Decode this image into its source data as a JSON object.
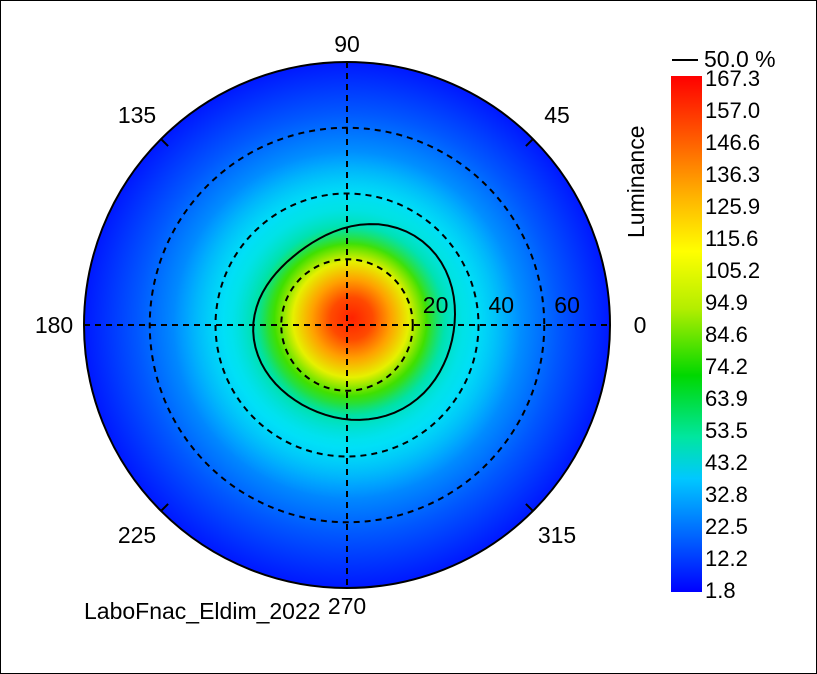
{
  "chart_data": {
    "type": "heatmap",
    "projection": "polar",
    "colorbar_title": "Luminance",
    "contour_label": "50.0 %",
    "colorbar_ticks": [
      "167.3",
      "157.0",
      "146.6",
      "136.3",
      "125.9",
      "115.6",
      "105.2",
      "94.9",
      "84.6",
      "74.2",
      "63.9",
      "53.5",
      "43.2",
      "32.8",
      "22.5",
      "12.2",
      "1.8"
    ],
    "value_range": [
      1.8,
      167.3
    ],
    "angle_labels": [
      "0",
      "45",
      "90",
      "135",
      "180",
      "225",
      "270",
      "315"
    ],
    "radial_labels": [
      "20",
      "40",
      "60"
    ],
    "radial_rings": [
      20,
      40,
      60
    ],
    "max_radius": 80,
    "peak": {
      "value": 167.3,
      "theta": 0,
      "r": 0
    },
    "contour_50_percent_radius": 30,
    "footer_text": "LaboFnac_Eldim_2022",
    "colormap": [
      "#0000ff",
      "#0066ff",
      "#00c8ff",
      "#00e6a0",
      "#00d800",
      "#b4ee00",
      "#ffff00",
      "#ffb000",
      "#ff5a00",
      "#ff0000"
    ]
  }
}
